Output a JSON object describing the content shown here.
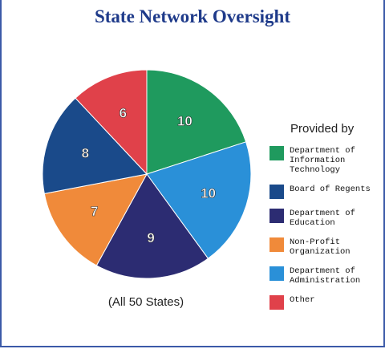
{
  "chart_data": {
    "type": "pie",
    "title": "State Network Oversight",
    "subtitle": "(All 50 States)",
    "legend_title": "Provided by",
    "categories": [
      "Department of Information Technology",
      "Board of Regents",
      "Department of Education",
      "Non-Profit Organization",
      "Department of Administration",
      "Other"
    ],
    "values": [
      10,
      8,
      9,
      7,
      10,
      6
    ],
    "colors": [
      "#1f9a5e",
      "#1a4a8a",
      "#2c2c72",
      "#f08a3a",
      "#2a90d8",
      "#e0414a"
    ]
  }
}
